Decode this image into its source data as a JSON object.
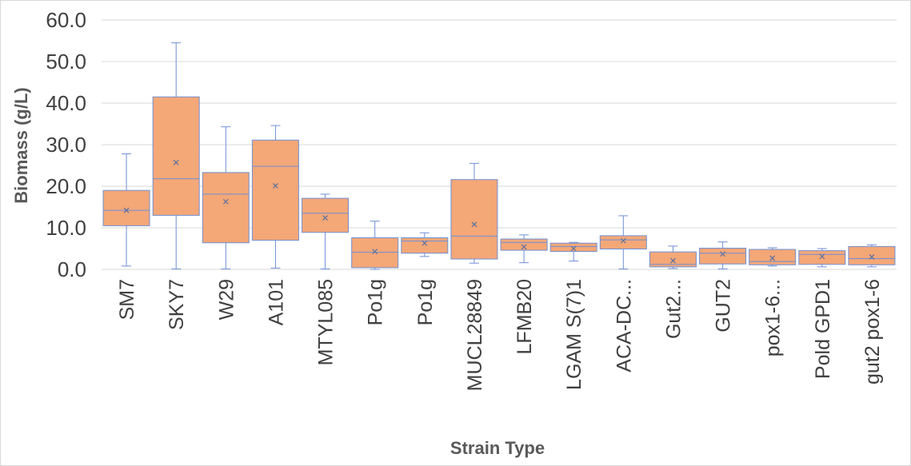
{
  "chart_data": {
    "type": "box",
    "xlabel": "Strain Type",
    "ylabel": "Biomass (g/L)",
    "ylim": [
      0,
      60
    ],
    "yticks": [
      "0.0",
      "10.0",
      "20.0",
      "30.0",
      "40.0",
      "50.0",
      "60.0"
    ],
    "grid": true,
    "legend": "none",
    "colors": {
      "box_fill": "#f4a777",
      "box_stroke": "#6f8fd6",
      "grid": "#d9d9d9",
      "text": "#404040"
    },
    "mean_marker": "x",
    "categories": [
      "SM7",
      "SKY7",
      "W29",
      "A101",
      "MTYL085",
      "Po1g",
      "Po1g",
      "MUCL28849",
      "LFMB20",
      "LGAM S(7)1",
      "ACA-DC...",
      "Gut2...",
      "GUT2",
      "pox1-6...",
      "Pold GPD1",
      "gut2 pox1-6"
    ],
    "boxes": [
      {
        "min": 0.8,
        "q1": 10.5,
        "median": 14.2,
        "q3": 19.0,
        "max": 27.8,
        "mean": 14.2
      },
      {
        "min": 0.1,
        "q1": 13.0,
        "median": 21.8,
        "q3": 41.5,
        "max": 54.5,
        "mean": 25.7
      },
      {
        "min": 0.1,
        "q1": 6.4,
        "median": 18.1,
        "q3": 23.3,
        "max": 34.3,
        "mean": 16.3
      },
      {
        "min": 0.3,
        "q1": 7.0,
        "median": 24.8,
        "q3": 31.1,
        "max": 34.6,
        "mean": 20.1
      },
      {
        "min": 0.1,
        "q1": 8.9,
        "median": 13.5,
        "q3": 17.1,
        "max": 18.1,
        "mean": 12.4
      },
      {
        "min": 0.0,
        "q1": 0.4,
        "median": 4.1,
        "q3": 7.6,
        "max": 11.6,
        "mean": 4.3
      },
      {
        "min": 3.1,
        "q1": 3.9,
        "median": 6.8,
        "q3": 7.6,
        "max": 8.8,
        "mean": 6.3
      },
      {
        "min": 1.5,
        "q1": 2.5,
        "median": 8.0,
        "q3": 21.6,
        "max": 25.5,
        "mean": 10.8
      },
      {
        "min": 1.6,
        "q1": 4.6,
        "median": 6.5,
        "q3": 7.3,
        "max": 8.3,
        "mean": 5.4
      },
      {
        "min": 2.0,
        "q1": 4.3,
        "median": 5.5,
        "q3": 6.3,
        "max": 6.5,
        "mean": 5.0
      },
      {
        "min": 0.1,
        "q1": 4.9,
        "median": 7.1,
        "q3": 8.1,
        "max": 12.9,
        "mean": 6.9
      },
      {
        "min": 0.2,
        "q1": 0.6,
        "median": 1.2,
        "q3": 4.2,
        "max": 5.6,
        "mean": 2.1
      },
      {
        "min": 0.1,
        "q1": 1.3,
        "median": 3.9,
        "q3": 5.1,
        "max": 6.6,
        "mean": 3.7
      },
      {
        "min": 0.8,
        "q1": 1.1,
        "median": 1.9,
        "q3": 4.8,
        "max": 5.2,
        "mean": 2.7
      },
      {
        "min": 0.6,
        "q1": 1.2,
        "median": 3.6,
        "q3": 4.5,
        "max": 5.0,
        "mean": 3.1
      },
      {
        "min": 0.6,
        "q1": 1.1,
        "median": 2.6,
        "q3": 5.5,
        "max": 5.9,
        "mean": 3.0
      }
    ]
  }
}
